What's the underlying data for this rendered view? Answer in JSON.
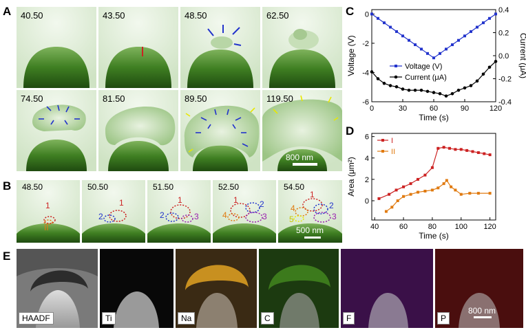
{
  "panel_labels": {
    "a": "A",
    "b": "B",
    "c": "C",
    "d": "D",
    "e": "E"
  },
  "panel_a": {
    "frames": [
      "40.50",
      "43.50",
      "48.50",
      "62.50",
      "74.50",
      "81.50",
      "89.50",
      "119.50"
    ],
    "marker_I": "I",
    "scale_bar": "800 nm"
  },
  "panel_b": {
    "frames": [
      "48.50",
      "50.50",
      "51.50",
      "52.50",
      "54.50"
    ],
    "scale_bar": "500 nm",
    "labels": {
      "one": "1",
      "two": "2",
      "three": "3",
      "four": "4",
      "five": "5",
      "roman_II": "II"
    }
  },
  "panel_e": {
    "maps": [
      "HAADF",
      "Ti",
      "Na",
      "C",
      "F",
      "P"
    ],
    "scale_bar": "800 nm"
  },
  "colors": {
    "green": "#4f9a2c",
    "blue": "#2233cc",
    "orange": "#e07a10",
    "red": "#cc2222",
    "purple": "#9a1fb0",
    "yellow": "#e8e800"
  },
  "chart_data": [
    {
      "type": "line",
      "panel": "C",
      "xlabel": "Time (s)",
      "ylabel_left": "Voltage (V)",
      "ylabel_right": "Current (μA)",
      "x_ticks": [
        "0",
        "30",
        "60",
        "90",
        "120"
      ],
      "y_ticks_left": [
        "0",
        "-2",
        "-4",
        "-6"
      ],
      "y_ticks_right": [
        "0.4",
        "0.2",
        "0.0",
        "-0.2",
        "-0.4"
      ],
      "xlim": [
        0,
        120
      ],
      "ylim_left": [
        -6,
        0.3
      ],
      "ylim_right": [
        -0.4,
        0.4
      ],
      "series": [
        {
          "name": "Voltage (V)",
          "axis": "left",
          "color": "#2233cc",
          "marker": "square",
          "x": [
            0,
            6,
            12,
            18,
            24,
            30,
            36,
            42,
            48,
            54,
            60,
            66,
            72,
            78,
            84,
            90,
            96,
            102,
            108,
            114,
            120
          ],
          "y": [
            0,
            -0.3,
            -0.6,
            -0.9,
            -1.2,
            -1.5,
            -1.8,
            -2.1,
            -2.4,
            -2.7,
            -3.0,
            -2.7,
            -2.4,
            -2.1,
            -1.8,
            -1.5,
            -1.2,
            -0.9,
            -0.6,
            -0.3,
            0
          ]
        },
        {
          "name": "Current (μA)",
          "axis": "right",
          "color": "#000000",
          "marker": "circle",
          "x": [
            0,
            6,
            12,
            18,
            24,
            30,
            36,
            42,
            48,
            54,
            60,
            66,
            72,
            78,
            84,
            90,
            96,
            102,
            108,
            114,
            120
          ],
          "y": [
            -0.14,
            -0.2,
            -0.24,
            -0.26,
            -0.27,
            -0.29,
            -0.3,
            -0.3,
            -0.3,
            -0.31,
            -0.32,
            -0.33,
            -0.35,
            -0.33,
            -0.3,
            -0.28,
            -0.26,
            -0.22,
            -0.16,
            -0.1,
            -0.05
          ]
        }
      ]
    },
    {
      "type": "line",
      "panel": "D",
      "xlabel": "Time (s)",
      "ylabel": "Area (μm²)",
      "x_ticks": [
        "40",
        "60",
        "80",
        "100",
        "120"
      ],
      "y_ticks": [
        "0",
        "2",
        "4",
        "6"
      ],
      "xlim": [
        38,
        124
      ],
      "ylim": [
        -1.8,
        6.3
      ],
      "series": [
        {
          "name": "I",
          "color": "#cc2222",
          "marker": "square",
          "x": [
            43,
            50,
            55,
            60,
            65,
            70,
            75,
            80,
            84,
            88,
            92,
            96,
            100,
            104,
            108,
            112,
            116,
            120
          ],
          "y": [
            0.2,
            0.6,
            1.0,
            1.3,
            1.6,
            2.0,
            2.4,
            3.1,
            4.9,
            5.0,
            4.9,
            4.8,
            4.8,
            4.7,
            4.6,
            4.5,
            4.4,
            4.3
          ]
        },
        {
          "name": "II",
          "color": "#e07a10",
          "marker": "square",
          "x": [
            48,
            52,
            56,
            60,
            65,
            70,
            75,
            80,
            84,
            88,
            90,
            93,
            96,
            100,
            106,
            112,
            120
          ],
          "y": [
            -1.0,
            -0.6,
            0.0,
            0.4,
            0.6,
            0.8,
            0.9,
            1.0,
            1.2,
            1.6,
            1.9,
            1.3,
            1.0,
            0.6,
            0.7,
            0.7,
            0.7
          ]
        }
      ]
    }
  ]
}
